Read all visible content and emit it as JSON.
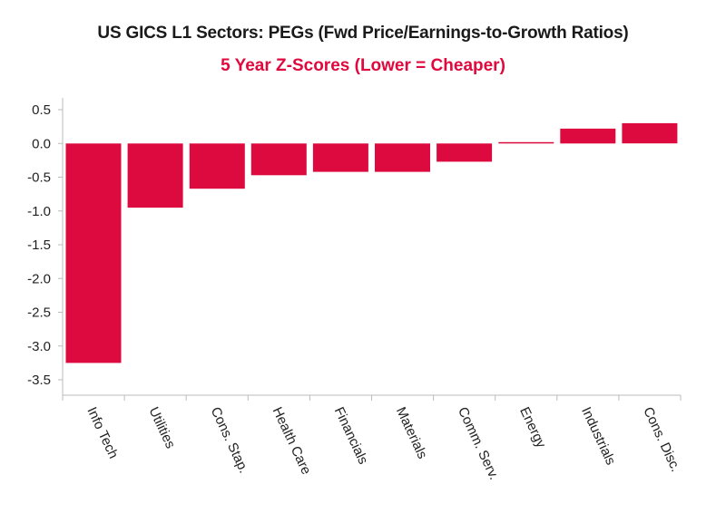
{
  "chart_data": {
    "type": "bar",
    "title": "US GICS L1 Sectors: PEGs (Fwd Price/Earnings-to-Growth Ratios)",
    "subtitle": "5 Year Z-Scores (Lower = Cheaper)",
    "categories": [
      "Info Tech",
      "Utilities",
      "Cons. Stap.",
      "Health Care",
      "Financials",
      "Materials",
      "Comm. Serv.",
      "Energy",
      "Industrials",
      "Cons. Disc."
    ],
    "values": [
      -3.25,
      -0.95,
      -0.67,
      -0.47,
      -0.42,
      -0.42,
      -0.27,
      0.02,
      0.22,
      0.3
    ],
    "yticks": [
      "0.5",
      "0.0",
      "-0.5",
      "-1.0",
      "-1.5",
      "-2.0",
      "-2.5",
      "-3.0",
      "-3.5"
    ],
    "ylim": [
      -3.5,
      0.5
    ],
    "xlabel": "",
    "ylabel": "",
    "bar_color": "#dd0a3f"
  }
}
